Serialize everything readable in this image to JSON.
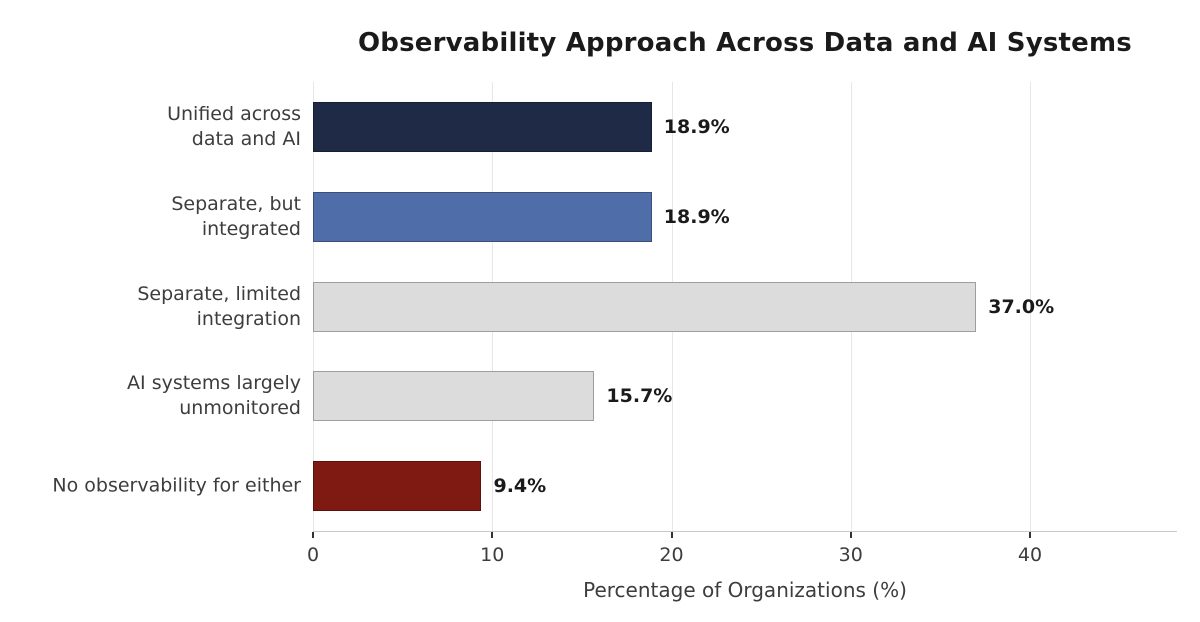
{
  "chart_data": {
    "type": "bar",
    "orientation": "horizontal",
    "title": "Observability Approach Across Data and AI Systems",
    "xlabel": "Percentage of Organizations (%)",
    "categories": [
      "Unified across\ndata and AI",
      "Separate, but\nintegrated",
      "Separate, limited\nintegration",
      "AI systems largely\nunmonitored",
      "No observability for either"
    ],
    "values": [
      18.9,
      18.9,
      37.0,
      15.7,
      9.4
    ],
    "value_labels": [
      "18.9%",
      "18.9%",
      "37.0%",
      "15.7%",
      "9.4%"
    ],
    "bar_colors": [
      "#1f2a47",
      "#4f6da8",
      "#dcdcdc",
      "#dcdcdc",
      "#7f1a12"
    ],
    "xticks": [
      0,
      10,
      20,
      30,
      40
    ],
    "xlim": [
      0,
      48.2
    ],
    "grid": true,
    "legend": null,
    "style": {
      "background": "#ffffff",
      "grid_color": "#e7e7e7",
      "spine_color": "#c9c9c9",
      "tick_color": "#333333",
      "tick_label_color": "#3d3d3d",
      "category_label_color": "#3d3d3d",
      "value_label_color": "#1a1a1a",
      "title_color": "#1a1a1a",
      "bar_edge_color": "rgba(0,0,0,0.28)"
    }
  }
}
